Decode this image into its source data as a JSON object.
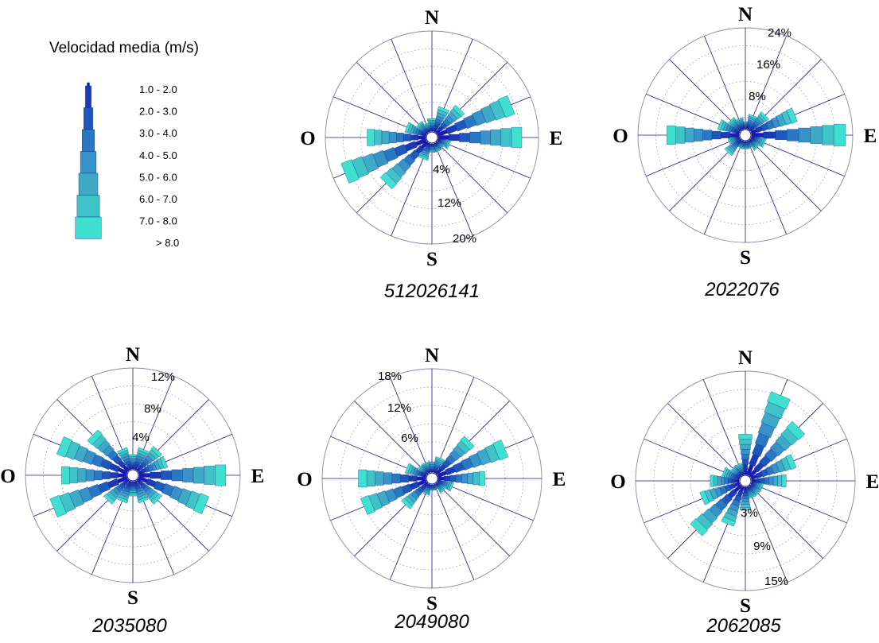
{
  "legend": {
    "title": "Velocidad media (m/s)",
    "bins": [
      "1.0 -  2.0",
      "2.0 -  3.0",
      "3.0 -  4.0",
      "4.0 -  5.0",
      "5.0 -  6.0",
      "6.0 -  7.0",
      "7.0 -  8.0",
      "> 8.0"
    ],
    "colors": [
      "#1a1ab4",
      "#1a3ab8",
      "#1f58bd",
      "#2a78c4",
      "#3692c8",
      "#3fa9c8",
      "#3fc2c8",
      "#3fe0cf"
    ]
  },
  "colors": {
    "grid_ring": "#8a8aa8",
    "spoke": "#1a1a8a",
    "background": "#ffffff"
  },
  "chart_data": [
    {
      "type": "windrose",
      "title": "512026141",
      "directions": [
        "N",
        "E",
        "S",
        "O"
      ],
      "pct_ticks": [
        "4%",
        "12%",
        "20%"
      ],
      "rmax_pct": 24,
      "sectors_deg": [
        0,
        22.5,
        45,
        67.5,
        90,
        112.5,
        135,
        157.5,
        180,
        202.5,
        225,
        247.5,
        270,
        292.5,
        315,
        337.5
      ],
      "sector_totals_pct": [
        3,
        6,
        8,
        19,
        20,
        3,
        2,
        2,
        2,
        4,
        14,
        21,
        14,
        5,
        3,
        2
      ]
    },
    {
      "type": "windrose",
      "title": "2022076",
      "directions": [
        "N",
        "E",
        "S",
        "O"
      ],
      "pct_ticks": [
        "8%",
        "16%",
        "24%"
      ],
      "rmax_pct": 28,
      "sectors_deg": [
        0,
        22.5,
        45,
        67.5,
        90,
        112.5,
        135,
        157.5,
        180,
        202.5,
        225,
        247.5,
        270,
        292.5,
        315,
        337.5
      ],
      "sector_totals_pct": [
        2,
        4,
        6,
        13,
        26,
        4,
        3,
        2,
        2,
        2,
        5,
        3,
        20,
        6,
        4,
        3
      ]
    },
    {
      "type": "windrose",
      "title": "2035080",
      "directions": [
        "N",
        "E",
        "S",
        "O"
      ],
      "pct_ticks": [
        "4%",
        "8%",
        "12%"
      ],
      "rmax_pct": 14,
      "sectors_deg": [
        0,
        22.5,
        45,
        67.5,
        90,
        112.5,
        135,
        157.5,
        180,
        202.5,
        225,
        247.5,
        270,
        292.5,
        315,
        337.5
      ],
      "sector_totals_pct": [
        2,
        3,
        4,
        4,
        12,
        10,
        4,
        3,
        2,
        3,
        4,
        11,
        9,
        10,
        7,
        3
      ]
    },
    {
      "type": "windrose",
      "title": "2049080",
      "directions": [
        "N",
        "E",
        "S",
        "O"
      ],
      "pct_ticks": [
        "6%",
        "12%",
        "18%"
      ],
      "rmax_pct": 20,
      "sectors_deg": [
        0,
        22.5,
        45,
        67.5,
        90,
        112.5,
        135,
        157.5,
        180,
        202.5,
        225,
        247.5,
        270,
        292.5,
        315,
        337.5
      ],
      "sector_totals_pct": [
        2,
        3,
        9,
        14,
        9,
        3,
        2,
        1,
        1,
        2,
        6,
        13,
        13,
        4,
        2,
        2
      ]
    },
    {
      "type": "windrose",
      "title": "2062085",
      "directions": [
        "N",
        "E",
        "S",
        "O"
      ],
      "pct_ticks": [
        "3%",
        "9%",
        "15%"
      ],
      "rmax_pct": 18,
      "sectors_deg": [
        0,
        22.5,
        45,
        67.5,
        90,
        112.5,
        135,
        157.5,
        180,
        202.5,
        225,
        247.5,
        270,
        292.5,
        315,
        337.5
      ],
      "sector_totals_pct": [
        7,
        15,
        12,
        8,
        6,
        2,
        2,
        2,
        4,
        7,
        11,
        7,
        5,
        3,
        2,
        2
      ]
    }
  ]
}
